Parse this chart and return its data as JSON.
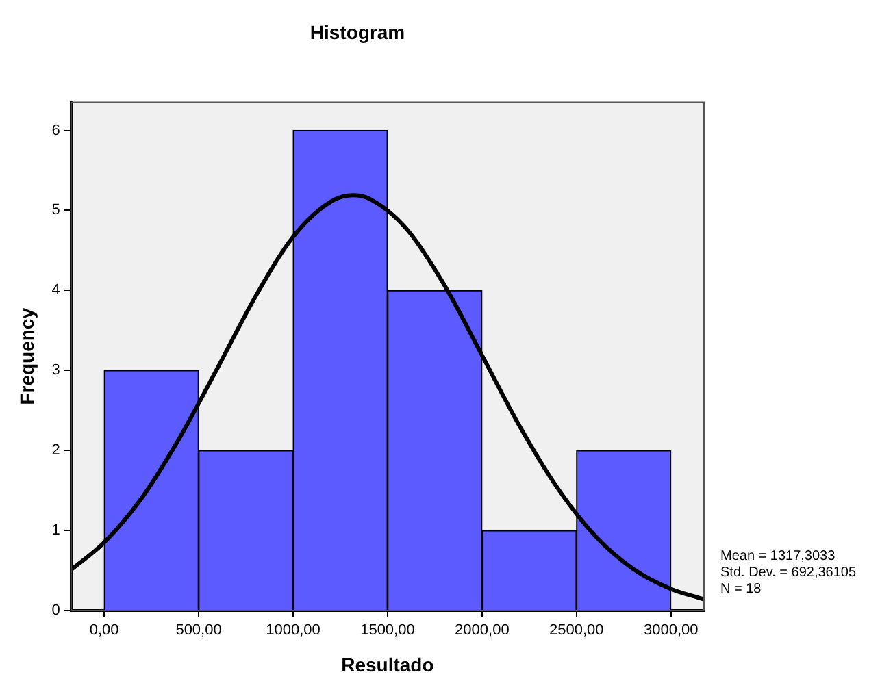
{
  "chart_data": {
    "type": "histogram",
    "title": "Histogram",
    "xlabel": "Resultado",
    "ylabel": "Frequency",
    "bins": [
      0,
      500,
      1000,
      1500,
      2000,
      2500,
      3000
    ],
    "values": [
      3,
      2,
      6,
      4,
      1,
      2
    ],
    "color": "#5b5bff",
    "series": [
      {
        "type": "line",
        "color": "#000000",
        "marker": "none",
        "x": [
          -175,
          0,
          200,
          400,
          600,
          800,
          1000,
          1200,
          1317,
          1400,
          1600,
          1800,
          2000,
          2200,
          2400,
          2600,
          2800,
          3000,
          3175
        ],
        "values": [
          0.51,
          0.85,
          1.41,
          2.16,
          3.03,
          3.92,
          4.67,
          5.11,
          5.19,
          5.15,
          4.77,
          4.07,
          3.19,
          2.3,
          1.53,
          0.93,
          0.52,
          0.27,
          0.14
        ]
      }
    ],
    "xlim": [
      -175,
      3175
    ],
    "xticks": [
      {
        "value": 0,
        "label": "0,00"
      },
      {
        "value": 500,
        "label": "500,00"
      },
      {
        "value": 1000,
        "label": "1000,00"
      },
      {
        "value": 1500,
        "label": "1500,00"
      },
      {
        "value": 2000,
        "label": "2000,00"
      },
      {
        "value": 2500,
        "label": "2500,00"
      },
      {
        "value": 3000,
        "label": "3000,00"
      }
    ],
    "ylim": [
      0,
      6.35
    ],
    "yticks": [
      0,
      1,
      2,
      3,
      4,
      5,
      6
    ],
    "grid": false,
    "annotations": [
      "Mean = 1317,3033",
      "Std. Dev. = 692,36105",
      "N = 18"
    ]
  }
}
